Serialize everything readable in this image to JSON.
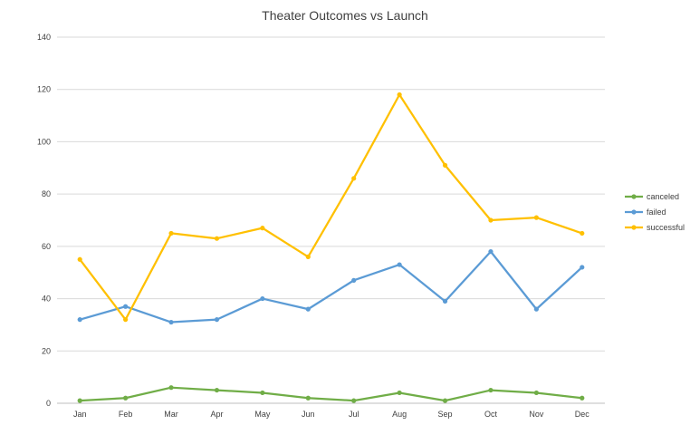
{
  "chart_data": {
    "type": "line",
    "title": "Theater Outcomes vs Launch",
    "xlabel": "",
    "ylabel": "",
    "categories": [
      "Jan",
      "Feb",
      "Mar",
      "Apr",
      "May",
      "Jun",
      "Jul",
      "Aug",
      "Sep",
      "Oct",
      "Nov",
      "Dec"
    ],
    "ylim": [
      0,
      140
    ],
    "yticks": [
      0,
      20,
      40,
      60,
      80,
      100,
      120,
      140
    ],
    "grid": true,
    "legend_position": "right",
    "series": [
      {
        "name": "canceled",
        "color": "#70ad47",
        "values": [
          1,
          2,
          6,
          5,
          4,
          2,
          1,
          4,
          1,
          5,
          4,
          2
        ]
      },
      {
        "name": "failed",
        "color": "#5b9bd5",
        "values": [
          32,
          37,
          31,
          32,
          40,
          36,
          47,
          53,
          39,
          58,
          36,
          52
        ]
      },
      {
        "name": "successful",
        "color": "#ffc000",
        "values": [
          55,
          32,
          65,
          63,
          67,
          56,
          86,
          118,
          91,
          70,
          71,
          65
        ]
      }
    ]
  }
}
